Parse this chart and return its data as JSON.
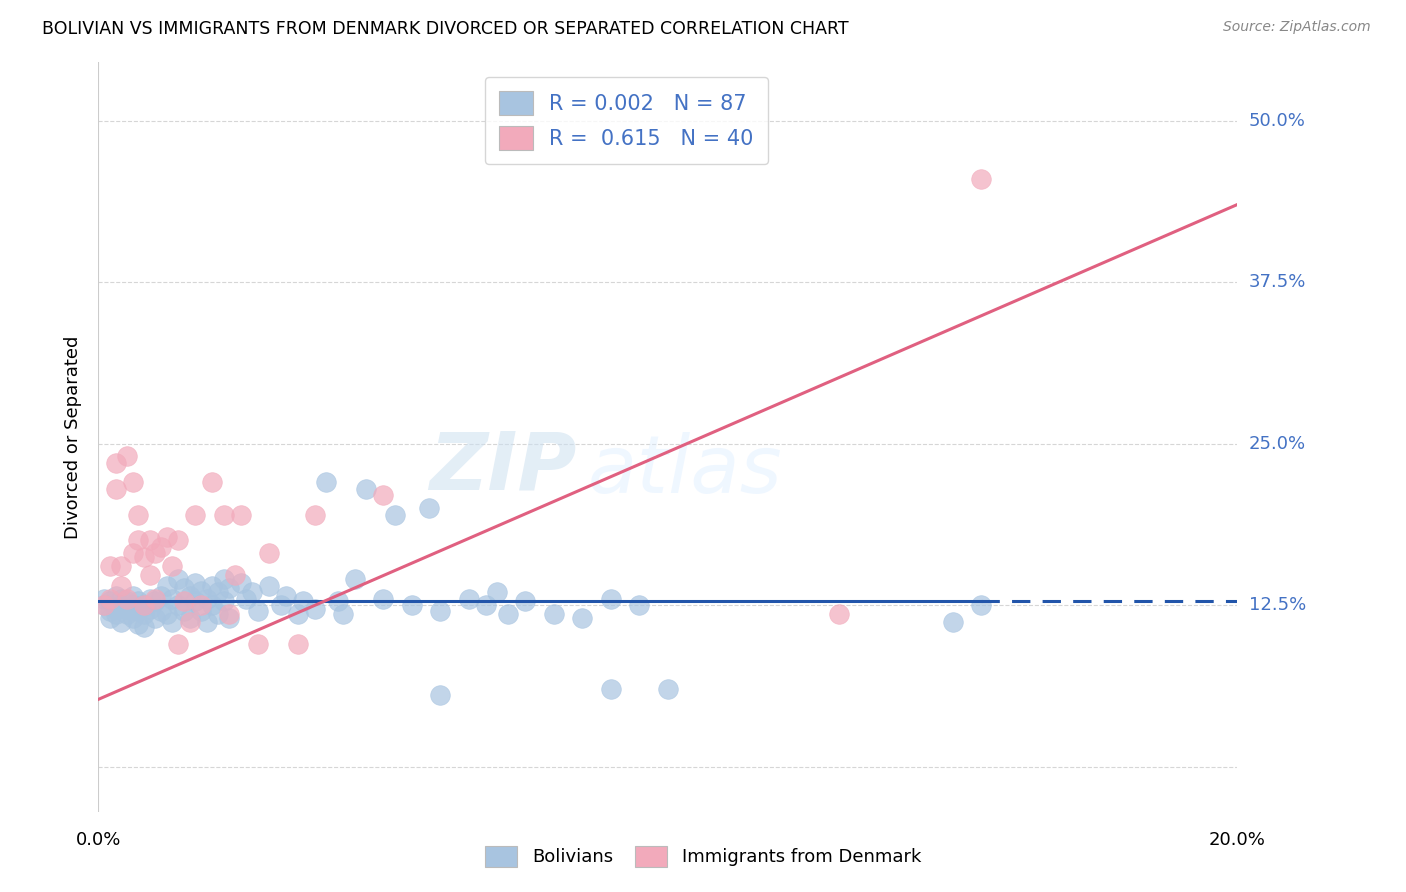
{
  "title": "BOLIVIAN VS IMMIGRANTS FROM DENMARK DIVORCED OR SEPARATED CORRELATION CHART",
  "source": "Source: ZipAtlas.com",
  "ylabel": "Divorced or Separated",
  "xlim": [
    0.0,
    0.2
  ],
  "ylim": [
    -0.035,
    0.545
  ],
  "yticks": [
    0.0,
    0.125,
    0.25,
    0.375,
    0.5
  ],
  "yticklabels": [
    "",
    "12.5%",
    "25.0%",
    "37.5%",
    "50.0%"
  ],
  "xticks": [
    0.0,
    0.05,
    0.1,
    0.15,
    0.2
  ],
  "r_bolivian": 0.002,
  "n_bolivian": 87,
  "r_denmark": 0.615,
  "n_denmark": 40,
  "blue_color": "#a8c4e0",
  "pink_color": "#f2aabb",
  "blue_line_color": "#2255aa",
  "pink_line_color": "#e06080",
  "watermark_zip": "ZIP",
  "watermark_atlas": "atlas",
  "background_color": "#ffffff",
  "grid_color": "#cccccc",
  "legend_label_blue": "R = 0.002   N = 87",
  "legend_label_pink": "R =  0.615   N = 40",
  "blue_line_solid_end": 0.155,
  "blue_line_y": 0.128,
  "pink_line_x0": 0.0,
  "pink_line_y0": 0.052,
  "pink_line_x1": 0.2,
  "pink_line_y1": 0.435,
  "bolivians": [
    [
      0.001,
      0.13
    ],
    [
      0.001,
      0.125
    ],
    [
      0.002,
      0.128
    ],
    [
      0.002,
      0.12
    ],
    [
      0.002,
      0.115
    ],
    [
      0.003,
      0.132
    ],
    [
      0.003,
      0.118
    ],
    [
      0.003,
      0.122
    ],
    [
      0.004,
      0.125
    ],
    [
      0.004,
      0.112
    ],
    [
      0.004,
      0.13
    ],
    [
      0.005,
      0.128
    ],
    [
      0.005,
      0.118
    ],
    [
      0.005,
      0.122
    ],
    [
      0.006,
      0.125
    ],
    [
      0.006,
      0.115
    ],
    [
      0.006,
      0.132
    ],
    [
      0.007,
      0.12
    ],
    [
      0.007,
      0.11
    ],
    [
      0.007,
      0.128
    ],
    [
      0.008,
      0.125
    ],
    [
      0.008,
      0.118
    ],
    [
      0.008,
      0.108
    ],
    [
      0.009,
      0.13
    ],
    [
      0.009,
      0.122
    ],
    [
      0.01,
      0.128
    ],
    [
      0.01,
      0.115
    ],
    [
      0.011,
      0.132
    ],
    [
      0.011,
      0.12
    ],
    [
      0.012,
      0.14
    ],
    [
      0.012,
      0.118
    ],
    [
      0.013,
      0.13
    ],
    [
      0.013,
      0.112
    ],
    [
      0.014,
      0.145
    ],
    [
      0.014,
      0.125
    ],
    [
      0.015,
      0.138
    ],
    [
      0.015,
      0.12
    ],
    [
      0.016,
      0.132
    ],
    [
      0.016,
      0.115
    ],
    [
      0.017,
      0.142
    ],
    [
      0.017,
      0.128
    ],
    [
      0.018,
      0.136
    ],
    [
      0.018,
      0.12
    ],
    [
      0.019,
      0.13
    ],
    [
      0.019,
      0.112
    ],
    [
      0.02,
      0.14
    ],
    [
      0.02,
      0.125
    ],
    [
      0.021,
      0.135
    ],
    [
      0.021,
      0.118
    ],
    [
      0.022,
      0.145
    ],
    [
      0.022,
      0.128
    ],
    [
      0.023,
      0.138
    ],
    [
      0.023,
      0.115
    ],
    [
      0.025,
      0.142
    ],
    [
      0.026,
      0.13
    ],
    [
      0.027,
      0.135
    ],
    [
      0.028,
      0.12
    ],
    [
      0.03,
      0.14
    ],
    [
      0.032,
      0.125
    ],
    [
      0.033,
      0.132
    ],
    [
      0.035,
      0.118
    ],
    [
      0.036,
      0.128
    ],
    [
      0.038,
      0.122
    ],
    [
      0.04,
      0.22
    ],
    [
      0.042,
      0.128
    ],
    [
      0.043,
      0.118
    ],
    [
      0.045,
      0.145
    ],
    [
      0.047,
      0.215
    ],
    [
      0.05,
      0.13
    ],
    [
      0.052,
      0.195
    ],
    [
      0.055,
      0.125
    ],
    [
      0.058,
      0.2
    ],
    [
      0.06,
      0.12
    ],
    [
      0.065,
      0.13
    ],
    [
      0.068,
      0.125
    ],
    [
      0.07,
      0.135
    ],
    [
      0.072,
      0.118
    ],
    [
      0.075,
      0.128
    ],
    [
      0.08,
      0.118
    ],
    [
      0.085,
      0.115
    ],
    [
      0.09,
      0.13
    ],
    [
      0.095,
      0.125
    ],
    [
      0.06,
      0.055
    ],
    [
      0.09,
      0.06
    ],
    [
      0.1,
      0.06
    ],
    [
      0.15,
      0.112
    ],
    [
      0.155,
      0.125
    ]
  ],
  "denmark": [
    [
      0.001,
      0.125
    ],
    [
      0.002,
      0.155
    ],
    [
      0.002,
      0.13
    ],
    [
      0.003,
      0.215
    ],
    [
      0.003,
      0.235
    ],
    [
      0.004,
      0.14
    ],
    [
      0.004,
      0.155
    ],
    [
      0.005,
      0.24
    ],
    [
      0.005,
      0.13
    ],
    [
      0.006,
      0.165
    ],
    [
      0.006,
      0.22
    ],
    [
      0.007,
      0.175
    ],
    [
      0.007,
      0.195
    ],
    [
      0.008,
      0.162
    ],
    [
      0.008,
      0.125
    ],
    [
      0.009,
      0.175
    ],
    [
      0.009,
      0.148
    ],
    [
      0.01,
      0.165
    ],
    [
      0.01,
      0.13
    ],
    [
      0.011,
      0.17
    ],
    [
      0.012,
      0.178
    ],
    [
      0.013,
      0.155
    ],
    [
      0.014,
      0.175
    ],
    [
      0.014,
      0.095
    ],
    [
      0.015,
      0.128
    ],
    [
      0.016,
      0.112
    ],
    [
      0.017,
      0.195
    ],
    [
      0.018,
      0.125
    ],
    [
      0.02,
      0.22
    ],
    [
      0.022,
      0.195
    ],
    [
      0.023,
      0.118
    ],
    [
      0.024,
      0.148
    ],
    [
      0.025,
      0.195
    ],
    [
      0.028,
      0.095
    ],
    [
      0.03,
      0.165
    ],
    [
      0.035,
      0.095
    ],
    [
      0.038,
      0.195
    ],
    [
      0.05,
      0.21
    ],
    [
      0.13,
      0.118
    ],
    [
      0.155,
      0.455
    ]
  ]
}
